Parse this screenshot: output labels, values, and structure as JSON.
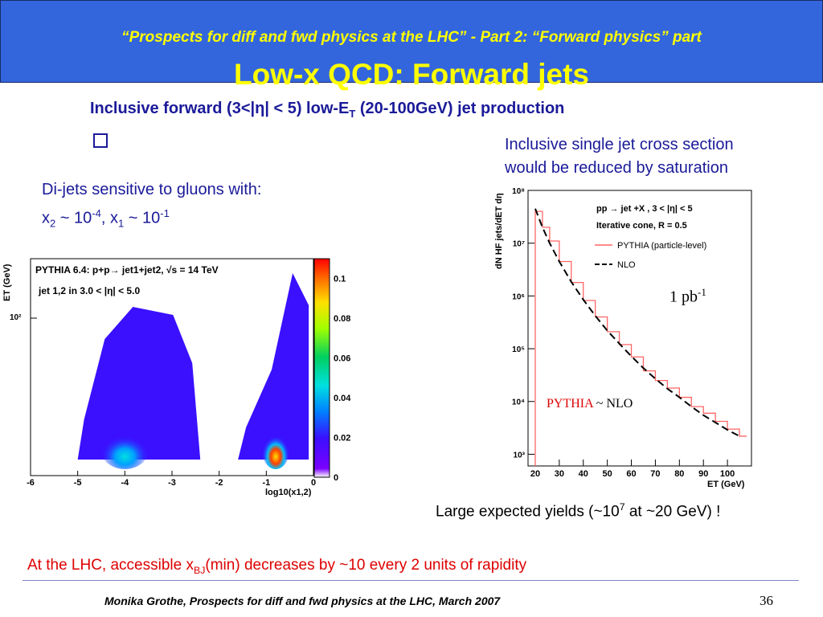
{
  "header": {
    "subtitle": "“Prospects for diff and fwd physics at the LHC” - Part 2: “Forward physics” part",
    "title": "Low-x QCD: Forward jets"
  },
  "slide": {
    "subtitle_pre": "Inclusive forward (3<|η| < 5) low-E",
    "subtitle_sub": "T",
    "subtitle_post": " (20-100GeV) jet production",
    "left_line1": "Di-jets sensitive to gluons with:",
    "left_x2": "x",
    "left_x2_sub": "2",
    "left_x2_val": " ~ 10",
    "left_x2_exp": "-4",
    "left_x1_sep": ", x",
    "left_x1_sub": "1",
    "left_x1_val": " ~ 10",
    "left_x1_exp": "-1",
    "right_line1": "Inclusive single jet cross section",
    "right_line2": "would be reduced by saturation",
    "yield_pre": "Large expected yields (~10",
    "yield_exp": "7",
    "yield_post": " at ~20 GeV) !",
    "bottom_pre": "At the LHC, accessible x",
    "bottom_sub": "BJ",
    "bottom_post": "(min) decreases by ~10 every 2 units of rapidity"
  },
  "footer": {
    "text": "Monika Grothe, Prospects for diff and fwd physics at the LHC, March 2007",
    "page": "36"
  },
  "chart_data": [
    {
      "type": "heatmap",
      "title": "PYTHIA 6.4: p+p→ jet1+jet2, √s = 14 TeV",
      "annotation": "jet 1,2 in 3.0 < |η| < 5.0",
      "xlabel": "log10(x1,2)",
      "ylabel": "ET (GeV)",
      "x_ticks": [
        "-6",
        "-5",
        "-4",
        "-3",
        "-2",
        "-1",
        "0"
      ],
      "y_ticks": [
        "10²"
      ],
      "colorbar_ticks": [
        "0.1",
        "0.08",
        "0.06",
        "0.04",
        "0.02",
        "0"
      ],
      "xlim": [
        -6,
        0
      ],
      "colorbar_range": [
        0,
        0.11
      ],
      "lobes": [
        {
          "name": "x2 lobe",
          "x_range": [
            -5.0,
            -2.4
          ],
          "peak_x": -4.0
        },
        {
          "name": "x1 lobe",
          "x_range": [
            -1.6,
            -0.1
          ],
          "peak_x": -0.8
        }
      ]
    },
    {
      "type": "line",
      "xlabel": "ET (GeV)",
      "ylabel": "dN HF jets/dET dη",
      "yscale": "log",
      "xlim": [
        17,
        110
      ],
      "ylim": [
        600,
        100000000
      ],
      "x_ticks": [
        "20",
        "30",
        "40",
        "50",
        "60",
        "70",
        "80",
        "90",
        "100"
      ],
      "y_ticks": [
        "10³",
        "10⁴",
        "10⁵",
        "10⁶",
        "10⁷",
        "10⁸"
      ],
      "legend": {
        "header1": "pp → jet +X , 3 < |η| < 5",
        "header2": "Iterative cone, R = 0.5",
        "entries": [
          "PYTHIA (particle-level)",
          "NLO"
        ],
        "placement": "top-right"
      },
      "annotation_lumi": "1 pb",
      "annotation_lumi_exp": "-1",
      "annotation_red": "PYTHIA",
      "annotation_black": " ~ NLO",
      "series": [
        {
          "name": "PYTHIA (particle-level)",
          "color": "#ff6666",
          "x": [
            20,
            23,
            26,
            30,
            35,
            40,
            45,
            50,
            55,
            60,
            65,
            70,
            75,
            80,
            85,
            90,
            95,
            100,
            105
          ],
          "y": [
            40000000,
            20000000,
            11000000,
            4500000,
            1800000,
            820000,
            400000,
            210000,
            120000,
            70000,
            38000,
            25000,
            18000,
            12000,
            8000,
            6000,
            4200,
            3000,
            2200
          ]
        },
        {
          "name": "NLO",
          "color": "#000000",
          "x": [
            20,
            23,
            26,
            30,
            35,
            40,
            45,
            50,
            55,
            60,
            65,
            70,
            75,
            80,
            85,
            90,
            95,
            100,
            105
          ],
          "y": [
            45000000,
            20000000,
            10000000,
            4500000,
            1850000,
            850000,
            420000,
            220000,
            125000,
            72000,
            43000,
            27000,
            17500,
            12000,
            8000,
            5500,
            4000,
            2900,
            2200
          ]
        }
      ]
    }
  ]
}
